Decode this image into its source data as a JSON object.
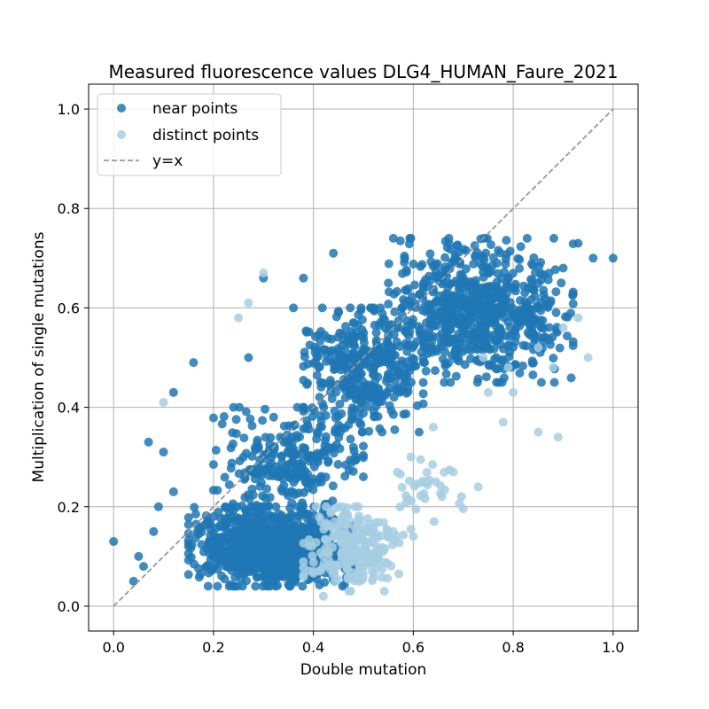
{
  "chart_data": {
    "type": "scatter",
    "title": "Measured fluorescence values DLG4_HUMAN_Faure_2021",
    "xlabel": "Double mutation",
    "ylabel": "Multiplication of single mutations",
    "xlim": [
      -0.05,
      1.05
    ],
    "ylim": [
      -0.05,
      1.05
    ],
    "xticks": [
      "0.0",
      "0.2",
      "0.4",
      "0.6",
      "0.8",
      "1.0"
    ],
    "yticks": [
      "0.0",
      "0.2",
      "0.4",
      "0.6",
      "0.8",
      "1.0"
    ],
    "grid": true,
    "legend_position": "top-left",
    "series": [
      {
        "name": "near points",
        "color": "#1f77b4",
        "marker": "circle",
        "clusters": [
          {
            "x_range": [
              0.15,
              0.48
            ],
            "y_range": [
              0.04,
              0.2
            ],
            "count": 900
          },
          {
            "x_range": [
              0.2,
              0.5
            ],
            "y_range": [
              0.18,
              0.4
            ],
            "count": 260
          },
          {
            "x_range": [
              0.38,
              0.62
            ],
            "y_range": [
              0.35,
              0.6
            ],
            "count": 380
          },
          {
            "x_range": [
              0.55,
              0.92
            ],
            "y_range": [
              0.45,
              0.74
            ],
            "count": 700
          }
        ],
        "points": [
          [
            0.0,
            0.13
          ],
          [
            0.07,
            0.33
          ],
          [
            0.05,
            0.1
          ],
          [
            0.04,
            0.05
          ],
          [
            0.12,
            0.43
          ],
          [
            0.16,
            0.49
          ],
          [
            0.3,
            0.66
          ],
          [
            0.38,
            0.66
          ],
          [
            0.44,
            0.71
          ],
          [
            0.27,
            0.5
          ],
          [
            0.36,
            0.6
          ],
          [
            1.0,
            0.7
          ],
          [
            0.96,
            0.7
          ],
          [
            0.93,
            0.73
          ],
          [
            0.9,
            0.68
          ],
          [
            0.12,
            0.23
          ],
          [
            0.09,
            0.2
          ],
          [
            0.08,
            0.15
          ],
          [
            0.06,
            0.08
          ],
          [
            0.1,
            0.31
          ]
        ]
      },
      {
        "name": "distinct points",
        "color": "#a6cee3",
        "marker": "circle",
        "clusters": [
          {
            "x_range": [
              0.38,
              0.58
            ],
            "y_range": [
              0.03,
              0.2
            ],
            "count": 230
          },
          {
            "x_range": [
              0.55,
              0.7
            ],
            "y_range": [
              0.15,
              0.3
            ],
            "count": 35
          }
        ],
        "points": [
          [
            0.1,
            0.41
          ],
          [
            0.3,
            0.67
          ],
          [
            0.25,
            0.58
          ],
          [
            0.27,
            0.61
          ],
          [
            0.73,
            0.24
          ],
          [
            0.78,
            0.37
          ],
          [
            0.8,
            0.43
          ],
          [
            0.85,
            0.35
          ],
          [
            0.89,
            0.34
          ],
          [
            0.95,
            0.5
          ],
          [
            0.93,
            0.58
          ],
          [
            0.88,
            0.48
          ],
          [
            0.9,
            0.56
          ],
          [
            0.79,
            0.48
          ],
          [
            0.85,
            0.52
          ],
          [
            0.68,
            0.27
          ],
          [
            0.64,
            0.36
          ],
          [
            0.75,
            0.43
          ],
          [
            0.74,
            0.5
          ],
          [
            0.56,
            0.15
          ],
          [
            0.6,
            0.14
          ],
          [
            0.42,
            0.02
          ],
          [
            0.43,
            0.08
          ],
          [
            0.5,
            0.06
          ]
        ]
      }
    ],
    "reference_line": {
      "name": "y=x",
      "x": [
        0.0,
        1.0
      ],
      "y": [
        0.0,
        1.0
      ],
      "color": "#999999",
      "style": "dashed"
    }
  }
}
